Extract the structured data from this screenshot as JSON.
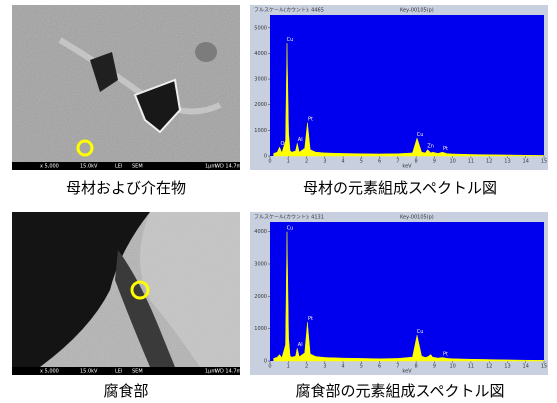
{
  "images": [
    {
      "info": [
        "x 5,000",
        "15.0kV",
        "LEI",
        "SEM",
        "1μm",
        "WD 14.7mm"
      ]
    },
    {
      "info": [
        "x 5,000",
        "15.0kV",
        "LEI",
        "SEM",
        "1μm",
        "WD 14.7mm"
      ]
    }
  ],
  "captions": [
    "母材および介在物",
    "母材の元素組成スペクトル図",
    "腐食部",
    "腐食部の元素組成スペクトル図"
  ],
  "chart_data": [
    {
      "type": "area",
      "title": "フルスケール(カウント): 4465",
      "subtitle": "Key-00105(p)",
      "x_label": "keV",
      "background": "#0000ee",
      "color": "#ffff00",
      "x": [
        0.2,
        0.4,
        0.52,
        0.65,
        0.85,
        0.93,
        1.02,
        1.1,
        1.2,
        1.4,
        1.49,
        1.6,
        1.9,
        2.05,
        2.2,
        2.5,
        3,
        4,
        5,
        6,
        7,
        7.8,
        8.05,
        8.3,
        8.5,
        8.63,
        8.8,
        8.9,
        9.2,
        9.44,
        9.7,
        10,
        11,
        12,
        13,
        14,
        15
      ],
      "values": [
        100,
        150,
        350,
        120,
        600,
        4400,
        900,
        200,
        150,
        200,
        500,
        150,
        300,
        1300,
        250,
        150,
        120,
        100,
        90,
        80,
        90,
        120,
        700,
        150,
        120,
        250,
        120,
        150,
        100,
        150,
        90,
        80,
        60,
        50,
        40,
        30,
        20
      ],
      "annotations": [
        {
          "text": "O",
          "x": 0.52
        },
        {
          "text": "Cu",
          "x": 0.93
        },
        {
          "text": "Al",
          "x": 1.49
        },
        {
          "text": "Pt",
          "x": 2.05
        },
        {
          "text": "Cu",
          "x": 8.05
        },
        {
          "text": "Zn",
          "x": 8.63
        },
        {
          "text": "Pt",
          "x": 9.44
        }
      ],
      "xlim": [
        0,
        15
      ],
      "xticks": [
        0,
        1,
        2,
        3,
        4,
        5,
        6,
        7,
        8,
        9,
        10,
        11,
        12,
        13,
        14,
        15
      ],
      "ylim": [
        0,
        5500
      ],
      "yticks": [
        0,
        1000,
        2000,
        3000,
        4000,
        5000
      ]
    },
    {
      "type": "area",
      "title": "フルスケール(カウント): 4131",
      "subtitle": "Key-00105(p)",
      "x_label": "keV",
      "background": "#0000ee",
      "color": "#ffff00",
      "x": [
        0.2,
        0.4,
        0.52,
        0.65,
        0.85,
        0.93,
        1.02,
        1.1,
        1.2,
        1.4,
        1.49,
        1.6,
        1.9,
        2.05,
        2.2,
        2.5,
        3,
        4,
        5,
        6,
        7,
        7.8,
        8.05,
        8.3,
        8.5,
        8.63,
        8.8,
        8.9,
        9.2,
        9.44,
        9.7,
        10,
        11,
        12,
        13,
        14,
        15
      ],
      "values": [
        80,
        120,
        200,
        100,
        500,
        4000,
        700,
        150,
        120,
        150,
        400,
        130,
        250,
        1200,
        220,
        140,
        110,
        90,
        80,
        70,
        80,
        120,
        800,
        150,
        110,
        130,
        200,
        120,
        90,
        110,
        80,
        70,
        55,
        45,
        35,
        25,
        20
      ],
      "annotations": [
        {
          "text": "Cu",
          "x": 0.93
        },
        {
          "text": "Al",
          "x": 1.49
        },
        {
          "text": "Pt",
          "x": 2.05
        },
        {
          "text": "Cu",
          "x": 8.05
        },
        {
          "text": "Pt",
          "x": 9.44
        }
      ],
      "xlim": [
        0,
        15
      ],
      "xticks": [
        0,
        1,
        2,
        3,
        4,
        5,
        6,
        7,
        8,
        9,
        10,
        11,
        12,
        13,
        14,
        15
      ],
      "ylim": [
        0,
        4300
      ],
      "yticks": [
        0,
        1000,
        2000,
        3000,
        4000
      ]
    }
  ]
}
